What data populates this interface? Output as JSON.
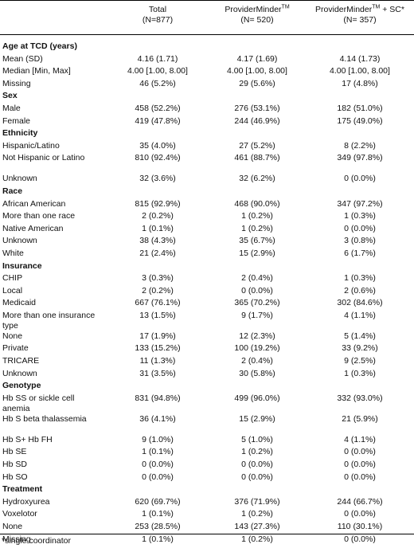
{
  "header": {
    "col1_line1": "Total",
    "col1_line2": "(N=877)",
    "col2_name": "ProviderMinder",
    "col2_sup": "TM",
    "col2_line2": "(N= 520)",
    "col3_name": "ProviderMinder",
    "col3_sup": "TM",
    "col3_suffix": " + SC*",
    "col3_line2": "(N= 357)"
  },
  "rows": [
    {
      "type": "section",
      "label": "Age at TCD (years)"
    },
    {
      "label": "Mean (SD)",
      "values": [
        "4.16 (1.71)",
        "4.17 (1.69)",
        "4.14 (1.73)"
      ]
    },
    {
      "label": "Median [Min, Max]",
      "values": [
        "4.00 [1.00, 8.00]",
        "4.00 [1.00, 8.00]",
        "4.00 [1.00, 8.00]"
      ]
    },
    {
      "label": "Missing",
      "values": [
        "46 (5.2%)",
        "29 (5.6%)",
        "17 (4.8%)"
      ]
    },
    {
      "type": "section",
      "label": "Sex"
    },
    {
      "label": "Male",
      "values": [
        "458 (52.2%)",
        "276 (53.1%)",
        "182 (51.0%)"
      ]
    },
    {
      "label": "Female",
      "values": [
        "419 (47.8%)",
        "244 (46.9%)",
        "175 (49.0%)"
      ]
    },
    {
      "type": "section",
      "label": "Ethnicity"
    },
    {
      "label": "Hispanic/Latino",
      "values": [
        "35 (4.0%)",
        "27 (5.2%)",
        "8 (2.2%)"
      ]
    },
    {
      "label": "Not Hispanic or Latino",
      "values": [
        "810 (92.4%)",
        "461 (88.7%)",
        "349 (97.8%)"
      ],
      "tall": true
    },
    {
      "label": "Unknown",
      "values": [
        "32 (3.6%)",
        "32 (6.2%)",
        "0 (0.0%)"
      ]
    },
    {
      "type": "section",
      "label": "Race"
    },
    {
      "label": "African American",
      "values": [
        "815 (92.9%)",
        "468 (90.0%)",
        "347 (97.2%)"
      ]
    },
    {
      "label": "More than one race",
      "values": [
        "2 (0.2%)",
        "1 (0.2%)",
        "1 (0.3%)"
      ]
    },
    {
      "label": "Native American",
      "values": [
        "1 (0.1%)",
        "1 (0.2%)",
        "0 (0.0%)"
      ]
    },
    {
      "label": "Unknown",
      "values": [
        "38 (4.3%)",
        "35 (6.7%)",
        "3 (0.8%)"
      ]
    },
    {
      "label": "White",
      "values": [
        "21 (2.4%)",
        "15 (2.9%)",
        "6 (1.7%)"
      ]
    },
    {
      "type": "section",
      "label": "Insurance"
    },
    {
      "label": "CHIP",
      "values": [
        "3 (0.3%)",
        "2 (0.4%)",
        "1 (0.3%)"
      ]
    },
    {
      "label": "Local",
      "values": [
        "2 (0.2%)",
        "0 (0.0%)",
        "2 (0.6%)"
      ]
    },
    {
      "label": "Medicaid",
      "values": [
        "667 (76.1%)",
        "365 (70.2%)",
        "302 (84.6%)"
      ]
    },
    {
      "label": "More than one insurance type",
      "values": [
        "13 (1.5%)",
        "9 (1.7%)",
        "4 (1.1%)"
      ],
      "tall": true
    },
    {
      "label": "None",
      "values": [
        "17 (1.9%)",
        "12 (2.3%)",
        "5 (1.4%)"
      ]
    },
    {
      "label": "Private",
      "values": [
        "133 (15.2%)",
        "100 (19.2%)",
        "33 (9.2%)"
      ]
    },
    {
      "label": "TRICARE",
      "values": [
        "11 (1.3%)",
        "2 (0.4%)",
        "9 (2.5%)"
      ]
    },
    {
      "label": "Unknown",
      "values": [
        "31 (3.5%)",
        "30 (5.8%)",
        "1 (0.3%)"
      ]
    },
    {
      "type": "section",
      "label": "Genotype"
    },
    {
      "label": "Hb SS or sickle cell anemia",
      "values": [
        "831 (94.8%)",
        "499 (96.0%)",
        "332 (93.0%)"
      ],
      "tall": true
    },
    {
      "label": "Hb S beta thalassemia",
      "values": [
        "36 (4.1%)",
        "15 (2.9%)",
        "21 (5.9%)"
      ],
      "tall": true
    },
    {
      "label": "Hb S+ Hb FH",
      "values": [
        "9 (1.0%)",
        "5 (1.0%)",
        "4 (1.1%)"
      ]
    },
    {
      "label": "Hb SE",
      "values": [
        "1 (0.1%)",
        "1 (0.2%)",
        "0 (0.0%)"
      ]
    },
    {
      "label": "Hb SD",
      "values": [
        "0 (0.0%)",
        "0 (0.0%)",
        "0 (0.0%)"
      ]
    },
    {
      "label": "Hb SO",
      "values": [
        "0 (0.0%)",
        "0 (0.0%)",
        "0 (0.0%)"
      ]
    },
    {
      "type": "section",
      "label": "Treatment"
    },
    {
      "label": "Hydroxyurea",
      "values": [
        "620 (69.7%)",
        "376 (71.9%)",
        "244 (66.7%)"
      ]
    },
    {
      "label": "Voxelotor",
      "values": [
        "1 (0.1%)",
        "1 (0.2%)",
        "0 (0.0%)"
      ]
    },
    {
      "label": "None",
      "values": [
        "253 (28.5%)",
        "143 (27.3%)",
        "110 (30.1%)"
      ]
    },
    {
      "label": "Missing",
      "values": [
        "1 (0.1%)",
        "1 (0.2%)",
        "0 (0.0%)"
      ]
    }
  ],
  "footnote": "*single coordinator"
}
